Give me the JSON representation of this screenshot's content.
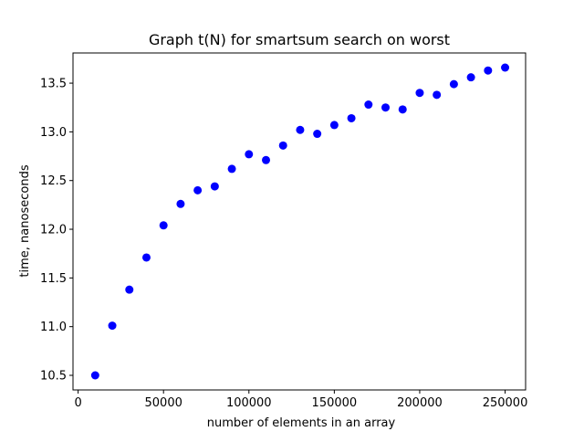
{
  "chart_data": {
    "type": "scatter",
    "title": "Graph t(N) for smartsum search on worst",
    "xlabel": "number of elements in an array",
    "ylabel": "time, nanoseconds",
    "xlim": [
      -3000,
      262000
    ],
    "ylim": [
      10.35,
      13.81
    ],
    "xticks": [
      {
        "value": 0,
        "label": "0"
      },
      {
        "value": 50000,
        "label": "50000"
      },
      {
        "value": 100000,
        "label": "100000"
      },
      {
        "value": 150000,
        "label": "150000"
      },
      {
        "value": 200000,
        "label": "200000"
      },
      {
        "value": 250000,
        "label": "250000"
      }
    ],
    "yticks": [
      {
        "value": 10.5,
        "label": "10.5"
      },
      {
        "value": 11.0,
        "label": "11.0"
      },
      {
        "value": 11.5,
        "label": "11.5"
      },
      {
        "value": 12.0,
        "label": "12.0"
      },
      {
        "value": 12.5,
        "label": "12.5"
      },
      {
        "value": 13.0,
        "label": "13.0"
      },
      {
        "value": 13.5,
        "label": "13.5"
      }
    ],
    "grid": false,
    "marker_color": "#0000ff",
    "series": [
      {
        "x": [
          10000,
          20000,
          30000,
          40000,
          50000,
          60000,
          70000,
          80000,
          90000,
          100000,
          110000,
          120000,
          130000,
          140000,
          150000,
          160000,
          170000,
          180000,
          190000,
          200000,
          210000,
          220000,
          230000,
          240000,
          250000
        ],
        "y": [
          10.5,
          11.01,
          11.38,
          11.71,
          12.04,
          12.26,
          12.4,
          12.44,
          12.62,
          12.77,
          12.71,
          12.86,
          13.02,
          12.98,
          13.07,
          13.14,
          13.28,
          13.25,
          13.23,
          13.4,
          13.38,
          13.49,
          13.56,
          13.63,
          13.66
        ]
      }
    ]
  }
}
